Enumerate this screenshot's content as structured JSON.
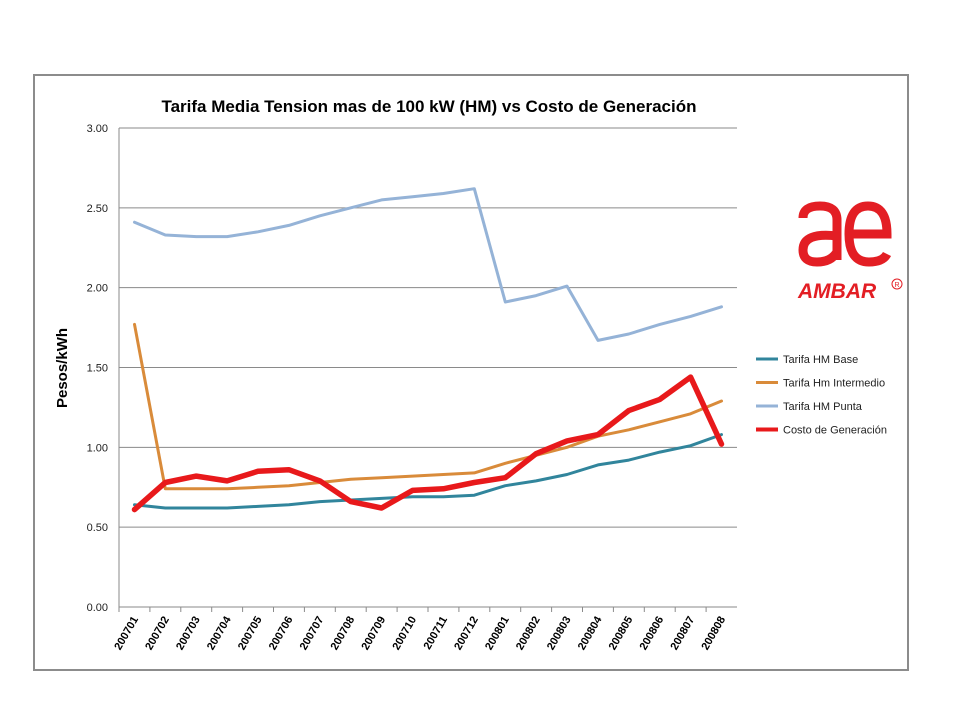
{
  "chart_data": {
    "type": "line",
    "title": "Tarifa Media Tension mas de 100 kW (HM) vs Costo de Generación",
    "xlabel": "",
    "ylabel": "Pesos/kWh",
    "ylim": [
      0,
      3
    ],
    "yticks": [
      "0.00",
      "0.50",
      "1.00",
      "1.50",
      "2.00",
      "2.50",
      "3.00"
    ],
    "grid": true,
    "legend_position": "right",
    "categories": [
      "200701",
      "200702",
      "200703",
      "200704",
      "200705",
      "200706",
      "200707",
      "200708",
      "200709",
      "200710",
      "200711",
      "200712",
      "200801",
      "200802",
      "200803",
      "200804",
      "200805",
      "200806",
      "200807",
      "200808"
    ],
    "series": [
      {
        "name": "Tarifa HM Base",
        "color": "#31859c",
        "values": [
          0.64,
          0.62,
          0.62,
          0.62,
          0.63,
          0.64,
          0.66,
          0.67,
          0.68,
          0.69,
          0.69,
          0.7,
          0.76,
          0.79,
          0.83,
          0.89,
          0.92,
          0.97,
          1.01,
          1.08
        ]
      },
      {
        "name": "Tarifa Hm Intermedio",
        "color": "#d98b3a",
        "values": [
          1.77,
          0.74,
          0.74,
          0.74,
          0.75,
          0.76,
          0.78,
          0.8,
          0.81,
          0.82,
          0.83,
          0.84,
          0.9,
          0.95,
          1.0,
          1.07,
          1.11,
          1.16,
          1.21,
          1.29
        ]
      },
      {
        "name": "Tarifa HM Punta",
        "color": "#95b3d7",
        "values": [
          2.41,
          2.33,
          2.32,
          2.32,
          2.35,
          2.39,
          2.45,
          2.5,
          2.55,
          2.57,
          2.59,
          2.62,
          1.91,
          1.95,
          2.01,
          1.67,
          1.71,
          1.77,
          1.82,
          1.88
        ]
      },
      {
        "name": "Costo de Generación",
        "color": "#e8191b",
        "values": [
          0.61,
          0.78,
          0.82,
          0.79,
          0.85,
          0.86,
          0.79,
          0.66,
          0.62,
          0.73,
          0.74,
          0.78,
          0.81,
          0.96,
          1.04,
          1.08,
          1.23,
          1.3,
          1.44,
          1.02
        ]
      }
    ]
  },
  "logo": {
    "text": "AMBAR",
    "mark": "ae",
    "registered": "R",
    "color": "#e31e24"
  }
}
